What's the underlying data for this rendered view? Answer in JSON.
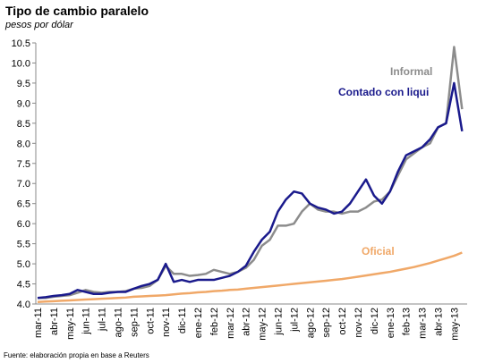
{
  "chart_data": {
    "type": "line",
    "title": "Tipo de cambio paralelo",
    "subtitle": "pesos por dólar",
    "source": "Fuente: elaboración propia en base a Reuters",
    "categories": [
      "mar-11",
      null,
      "abr-11",
      null,
      "may-11",
      null,
      "jun-11",
      null,
      "jul-11",
      null,
      "ago-11",
      null,
      "sep-11",
      null,
      "oct-11",
      null,
      "nov-11",
      null,
      "dic-11",
      null,
      "ene-12",
      null,
      "feb-12",
      null,
      "mar-12",
      null,
      "abr-12",
      null,
      "may-12",
      null,
      "jun-12",
      null,
      "jul-12",
      null,
      "ago-12",
      null,
      "sep-12",
      null,
      "oct-12",
      null,
      "nov-12",
      null,
      "dic-12",
      null,
      "ene-13",
      null,
      "feb-13",
      null,
      "mar-13",
      null,
      "abr-13",
      null,
      "may-13",
      null
    ],
    "ylim": [
      4,
      10.5
    ],
    "yticks": [
      {
        "value": 4,
        "label": "4.0"
      },
      4.5,
      {
        "value": 5,
        "label": "5.0"
      },
      5.5,
      {
        "value": 6,
        "label": "6.0"
      },
      6.5,
      {
        "value": 7,
        "label": "7.0"
      },
      7.5,
      {
        "value": 8,
        "label": "8.0"
      },
      8.5,
      {
        "value": 9,
        "label": "9.0"
      },
      9.5,
      {
        "value": 10,
        "label": "10.0"
      },
      10.5
    ],
    "grid": false,
    "series": [
      {
        "name": "Oficial",
        "color": "#f0a868",
        "values": [
          4.05,
          4.06,
          4.07,
          4.08,
          4.09,
          4.1,
          4.11,
          4.12,
          4.13,
          4.14,
          4.15,
          4.16,
          4.18,
          4.19,
          4.2,
          4.21,
          4.22,
          4.24,
          4.26,
          4.27,
          4.29,
          4.3,
          4.32,
          4.33,
          4.35,
          4.36,
          4.38,
          4.4,
          4.42,
          4.44,
          4.46,
          4.48,
          4.5,
          4.52,
          4.54,
          4.56,
          4.58,
          4.6,
          4.62,
          4.65,
          4.68,
          4.71,
          4.74,
          4.77,
          4.8,
          4.84,
          4.88,
          4.92,
          4.97,
          5.02,
          5.08,
          5.14,
          5.2,
          5.28
        ]
      },
      {
        "name": "Informal",
        "color": "#8c8c8c",
        "values": [
          4.15,
          4.15,
          4.18,
          4.2,
          4.22,
          4.28,
          4.35,
          4.3,
          4.28,
          4.3,
          4.3,
          4.32,
          4.38,
          4.4,
          4.45,
          4.6,
          4.95,
          4.75,
          4.75,
          4.7,
          4.72,
          4.75,
          4.85,
          4.8,
          4.75,
          4.8,
          4.9,
          5.1,
          5.45,
          5.6,
          5.95,
          5.95,
          6.0,
          6.3,
          6.5,
          6.35,
          6.3,
          6.3,
          6.25,
          6.3,
          6.3,
          6.4,
          6.55,
          6.6,
          6.8,
          7.2,
          7.6,
          7.75,
          7.9,
          8.0,
          8.4,
          8.5,
          10.4,
          8.85
        ]
      },
      {
        "name": "Contado con liqui",
        "color": "#1a1a8c",
        "values": [
          4.15,
          4.17,
          4.2,
          4.22,
          4.25,
          4.35,
          4.3,
          4.25,
          4.25,
          4.28,
          4.3,
          4.3,
          4.38,
          4.45,
          4.5,
          4.6,
          5.0,
          4.55,
          4.6,
          4.55,
          4.6,
          4.6,
          4.6,
          4.65,
          4.7,
          4.8,
          4.95,
          5.3,
          5.6,
          5.8,
          6.3,
          6.6,
          6.8,
          6.75,
          6.5,
          6.4,
          6.35,
          6.25,
          6.3,
          6.5,
          6.8,
          7.1,
          6.7,
          6.5,
          6.8,
          7.3,
          7.7,
          7.8,
          7.9,
          8.1,
          8.4,
          8.5,
          9.5,
          8.3
        ]
      }
    ]
  }
}
